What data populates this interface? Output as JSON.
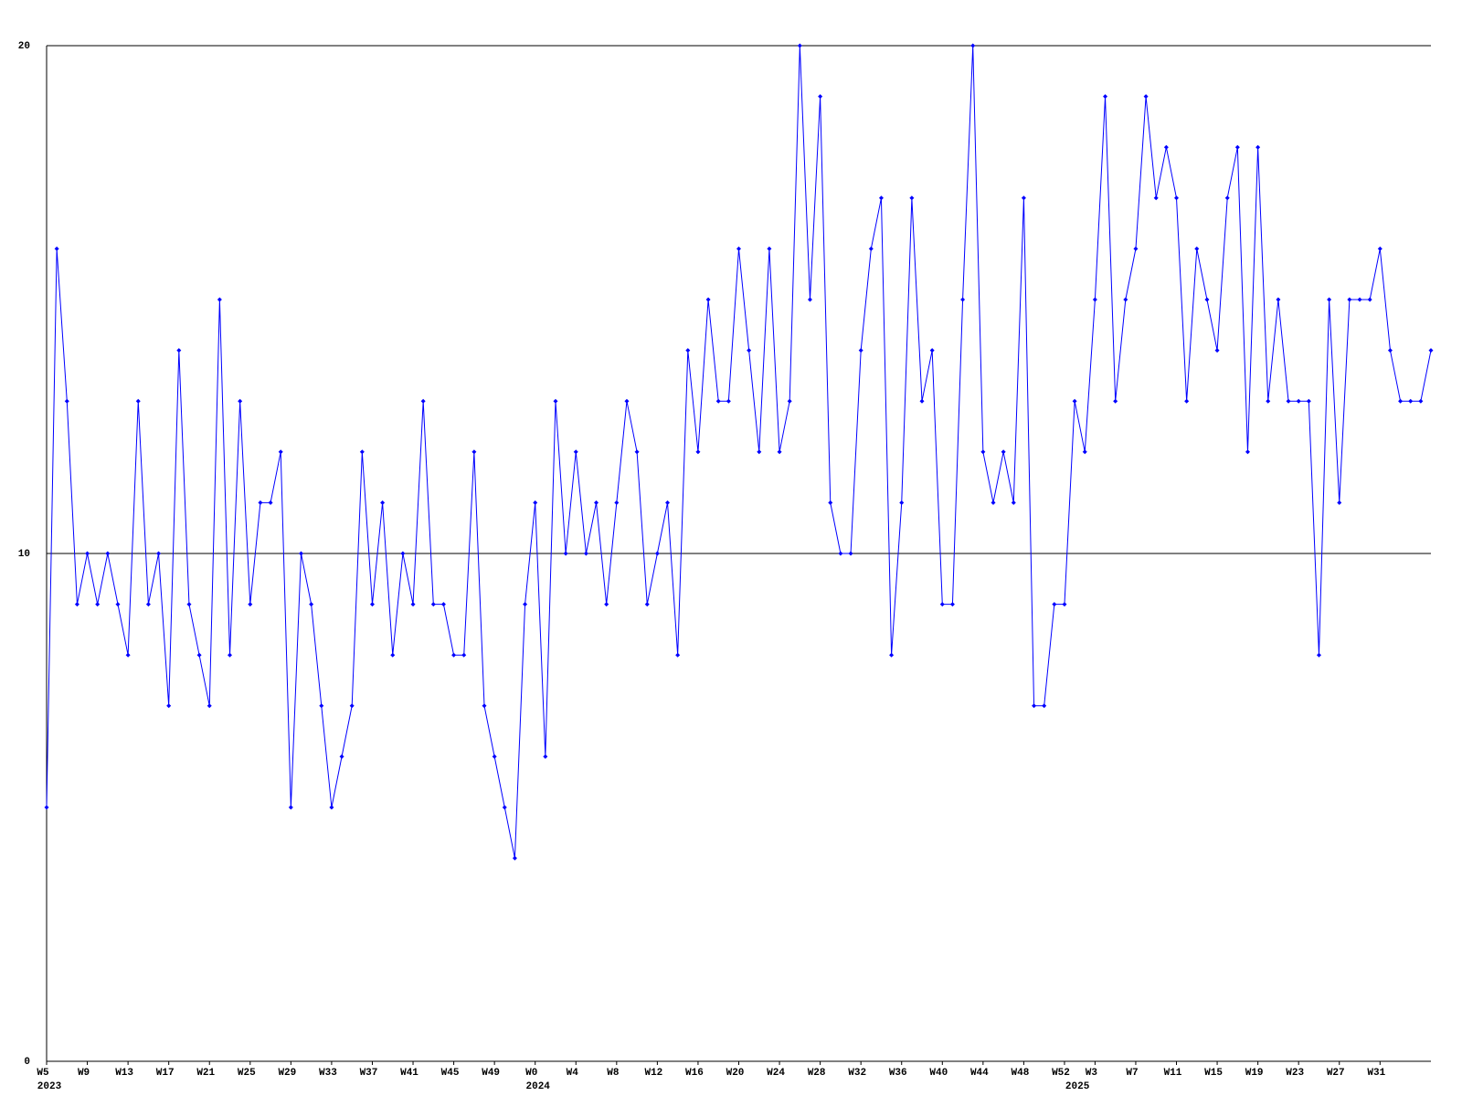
{
  "chart_data": {
    "type": "line",
    "color": "#0000ff",
    "grid": true,
    "ylim": [
      0,
      20
    ],
    "yticks": [
      0,
      10,
      20
    ],
    "categories": [
      "W5",
      null,
      null,
      null,
      "W9",
      null,
      null,
      null,
      "W13",
      null,
      null,
      null,
      "W17",
      null,
      null,
      null,
      "W21",
      null,
      null,
      null,
      "W25",
      null,
      null,
      null,
      "W29",
      null,
      null,
      null,
      "W33",
      null,
      null,
      null,
      "W37",
      null,
      null,
      null,
      "W41",
      null,
      null,
      null,
      "W45",
      null,
      null,
      null,
      "W49",
      null,
      null,
      null,
      "W0",
      null,
      null,
      null,
      "W4",
      null,
      null,
      null,
      "W8",
      null,
      null,
      null,
      "W12",
      null,
      null,
      null,
      "W16",
      null,
      null,
      null,
      "W20",
      null,
      null,
      null,
      "W24",
      null,
      null,
      null,
      "W28",
      null,
      null,
      null,
      "W32",
      null,
      null,
      null,
      "W36",
      null,
      null,
      null,
      "W40",
      null,
      null,
      null,
      "W44",
      null,
      null,
      null,
      "W48",
      null,
      null,
      null,
      "W52",
      null,
      null,
      "W3",
      null,
      null,
      null,
      "W7",
      null,
      null,
      null,
      "W11",
      null,
      null,
      null,
      "W15",
      null,
      null,
      null,
      "W19",
      null,
      null,
      null,
      "W23",
      null,
      null,
      null,
      "W27",
      null,
      null,
      null,
      "W31",
      null,
      null,
      null,
      null,
      null
    ],
    "years": [
      "2023",
      null,
      null,
      null,
      null,
      null,
      null,
      null,
      null,
      null,
      null,
      null,
      null,
      null,
      null,
      null,
      null,
      null,
      null,
      null,
      null,
      null,
      null,
      null,
      null,
      null,
      null,
      null,
      null,
      null,
      null,
      null,
      null,
      null,
      null,
      null,
      null,
      null,
      null,
      null,
      null,
      null,
      null,
      null,
      null,
      null,
      null,
      null,
      "2024",
      null,
      null,
      null,
      null,
      null,
      null,
      null,
      null,
      null,
      null,
      null,
      null,
      null,
      null,
      null,
      null,
      null,
      null,
      null,
      null,
      null,
      null,
      null,
      null,
      null,
      null,
      null,
      null,
      null,
      null,
      null,
      null,
      null,
      null,
      null,
      null,
      null,
      null,
      null,
      null,
      null,
      null,
      null,
      null,
      null,
      null,
      null,
      null,
      null,
      null,
      null,
      null,
      "2025",
      null,
      null,
      null,
      null,
      null,
      null,
      null,
      null,
      null,
      null,
      null,
      null,
      null,
      null,
      null,
      null,
      null,
      null,
      null,
      null,
      null,
      null,
      null,
      null,
      null,
      null,
      null,
      null,
      null,
      null,
      null,
      null,
      null,
      null,
      null
    ],
    "values": [
      5,
      16,
      13,
      9,
      10,
      9,
      10,
      9,
      8,
      13,
      9,
      10,
      7,
      14,
      9,
      8,
      7,
      15,
      8,
      13,
      9,
      11,
      11,
      12,
      5,
      10,
      9,
      7,
      5,
      6,
      7,
      12,
      9,
      11,
      8,
      10,
      9,
      13,
      9,
      9,
      8,
      8,
      12,
      7,
      6,
      5,
      4,
      9,
      11,
      6,
      13,
      10,
      12,
      10,
      11,
      9,
      11,
      13,
      12,
      9,
      10,
      11,
      8,
      14,
      12,
      15,
      13,
      13,
      16,
      14,
      12,
      16,
      12,
      13,
      20,
      15,
      19,
      11,
      10,
      10,
      14,
      16,
      17,
      8,
      11,
      17,
      13,
      14,
      9,
      9,
      15,
      20,
      12,
      11,
      12,
      11,
      17,
      7,
      7,
      9,
      9,
      13,
      12,
      15,
      19,
      13,
      15,
      16,
      19,
      17,
      18,
      17,
      13,
      16,
      15,
      14,
      17,
      18,
      12,
      18,
      13,
      15,
      13,
      13,
      13,
      8,
      15,
      11,
      15,
      15,
      15,
      16,
      14,
      13,
      13,
      13,
      14
    ]
  }
}
